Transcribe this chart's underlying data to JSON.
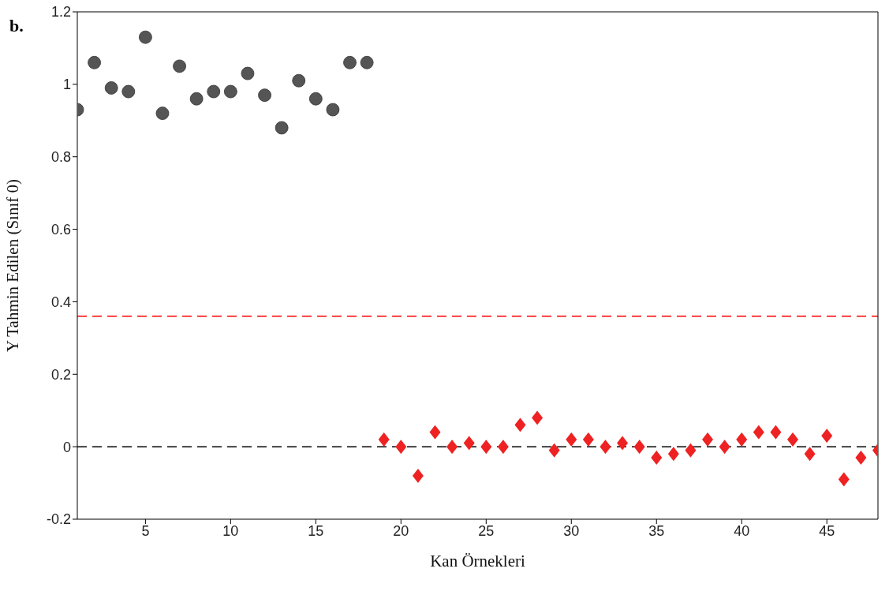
{
  "chart_data": {
    "type": "scatter",
    "xlabel": "Kan Örnekleri",
    "ylabel": "Y Tahmin Edilen (Sınıf 0)",
    "annotations": [
      "b."
    ],
    "xlim": [
      1,
      48
    ],
    "xticks": [
      5,
      10,
      15,
      20,
      25,
      30,
      35,
      40,
      45
    ],
    "ylim": [
      -0.2,
      1.2
    ],
    "yticks": [
      -0.2,
      0,
      0.2,
      0.4,
      0.6,
      0.8,
      1,
      1.2
    ],
    "grid": false,
    "legend": false,
    "series": [
      {
        "color": "#555555",
        "marker": "circle",
        "x": [
          1,
          2,
          3,
          4,
          5,
          6,
          7,
          8,
          9,
          10,
          11,
          12,
          13,
          14,
          15,
          16,
          17,
          18
        ],
        "values": [
          0.93,
          1.06,
          0.99,
          0.98,
          1.13,
          0.92,
          1.05,
          0.96,
          0.98,
          0.98,
          1.03,
          0.97,
          0.88,
          1.01,
          0.96,
          0.93,
          1.06,
          1.06
        ]
      },
      {
        "color": "#ee2222",
        "marker": "diamond",
        "x": [
          19,
          20,
          21,
          22,
          23,
          24,
          25,
          26,
          27,
          28,
          29,
          30,
          31,
          32,
          33,
          34,
          35,
          36,
          37,
          38,
          39,
          40,
          41,
          42,
          43,
          44,
          45,
          46,
          47,
          48
        ],
        "values": [
          0.02,
          0,
          -0.08,
          0.04,
          0,
          0.01,
          0,
          0,
          0.06,
          0.08,
          -0.01,
          0.02,
          0.02,
          0,
          0.01,
          0,
          -0.03,
          -0.02,
          -0.01,
          0.02,
          0,
          0.02,
          0.04,
          0.04,
          0.02,
          -0.02,
          0.03,
          -0.09,
          -0.03,
          -0.01
        ]
      }
    ],
    "ref_lines": [
      {
        "axis": "y",
        "value": 0.36,
        "color": "#ff0000",
        "line_style": "dashed"
      },
      {
        "axis": "y",
        "value": 0,
        "color": "#000000",
        "line_style": "dashed"
      }
    ]
  }
}
